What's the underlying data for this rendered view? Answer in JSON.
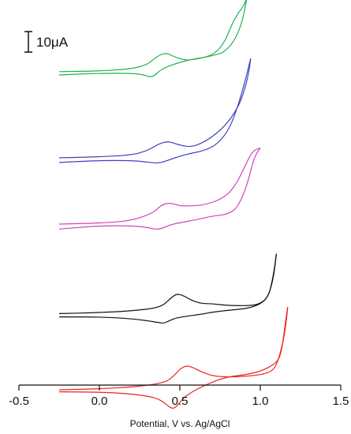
{
  "chart_data": {
    "type": "line",
    "title": "",
    "xlabel": "Potential, V vs. Ag/AgCl",
    "ylabel": "",
    "xlim": [
      -0.5,
      1.5
    ],
    "x_ticks": [
      -0.5,
      0.0,
      0.5,
      1.0,
      1.5
    ],
    "x_tick_labels": [
      "-0.5",
      "0.0",
      "0.5",
      "1.0",
      "1.5"
    ],
    "grid": false,
    "legend": "none",
    "scale_bar": {
      "label": "10μA",
      "value_uA": 10
    },
    "y_note": "current in μA; traces vertically offset, no y tick labels",
    "series": [
      {
        "color": "#22b24c",
        "offset_uA": 26,
        "forward": [
          [
            -0.25,
            0
          ],
          [
            0.0,
            0.2
          ],
          [
            0.2,
            0.8
          ],
          [
            0.3,
            2.2
          ],
          [
            0.33,
            3.5
          ],
          [
            0.38,
            5.2
          ],
          [
            0.42,
            5.6
          ],
          [
            0.46,
            4.6
          ],
          [
            0.52,
            3.6
          ],
          [
            0.56,
            3.5
          ],
          [
            0.65,
            4.2
          ],
          [
            0.72,
            5.5
          ],
          [
            0.78,
            9
          ],
          [
            0.82,
            14
          ],
          [
            0.86,
            17.5
          ],
          [
            0.9,
            20
          ],
          [
            0.92,
            23
          ],
          [
            0.94,
            30
          ]
        ],
        "reverse": [
          [
            0.94,
            30
          ],
          [
            0.9,
            17
          ],
          [
            0.85,
            10
          ],
          [
            0.78,
            6
          ],
          [
            0.72,
            5
          ],
          [
            0.65,
            4.3
          ],
          [
            0.56,
            3.6
          ],
          [
            0.48,
            2.5
          ],
          [
            0.42,
            1.5
          ],
          [
            0.38,
            0.5
          ],
          [
            0.34,
            -1.3
          ],
          [
            0.31,
            -1.6
          ],
          [
            0.28,
            -1
          ],
          [
            0.2,
            -0.5
          ],
          [
            0.0,
            -0.5
          ],
          [
            -0.25,
            -1
          ]
        ]
      },
      {
        "color": "#4040c0",
        "offset_uA": 0,
        "forward": [
          [
            -0.25,
            0
          ],
          [
            0.0,
            0.3
          ],
          [
            0.2,
            0.8
          ],
          [
            0.3,
            2.2
          ],
          [
            0.36,
            4
          ],
          [
            0.42,
            5
          ],
          [
            0.46,
            4.5
          ],
          [
            0.5,
            3.8
          ],
          [
            0.58,
            3.2
          ],
          [
            0.68,
            5.5
          ],
          [
            0.78,
            9.5
          ],
          [
            0.86,
            15
          ],
          [
            0.9,
            20
          ],
          [
            0.93,
            26
          ],
          [
            0.94,
            30
          ]
        ],
        "reverse": [
          [
            0.94,
            30
          ],
          [
            0.9,
            22
          ],
          [
            0.85,
            14
          ],
          [
            0.8,
            8
          ],
          [
            0.72,
            3.5
          ],
          [
            0.62,
            1.8
          ],
          [
            0.58,
            1.5
          ],
          [
            0.5,
            0.5
          ],
          [
            0.44,
            -0.5
          ],
          [
            0.4,
            -1.2
          ],
          [
            0.36,
            -1.6
          ],
          [
            0.32,
            -1.4
          ],
          [
            0.2,
            -0.8
          ],
          [
            0.0,
            -0.8
          ],
          [
            -0.25,
            -1.4
          ]
        ]
      },
      {
        "color": "#d040c0",
        "offset_uA": -20,
        "forward": [
          [
            -0.25,
            0
          ],
          [
            0.0,
            0.3
          ],
          [
            0.2,
            1
          ],
          [
            0.34,
            3.5
          ],
          [
            0.38,
            5.6
          ],
          [
            0.42,
            6.3
          ],
          [
            0.46,
            6.2
          ],
          [
            0.5,
            5.5
          ],
          [
            0.56,
            5.5
          ],
          [
            0.66,
            5.8
          ],
          [
            0.78,
            8
          ],
          [
            0.85,
            12
          ],
          [
            0.9,
            17
          ],
          [
            0.95,
            22
          ],
          [
            1.0,
            23
          ]
        ],
        "reverse": [
          [
            1.0,
            23
          ],
          [
            0.96,
            20
          ],
          [
            0.92,
            12
          ],
          [
            0.86,
            5
          ],
          [
            0.8,
            3
          ],
          [
            0.7,
            2.4
          ],
          [
            0.62,
            1.5
          ],
          [
            0.5,
            0.4
          ],
          [
            0.44,
            -0.2
          ],
          [
            0.38,
            -1.5
          ],
          [
            0.34,
            -1.5
          ],
          [
            0.3,
            -1
          ],
          [
            0.2,
            -0.5
          ],
          [
            0.0,
            -0.5
          ],
          [
            -0.25,
            -1.5
          ]
        ]
      },
      {
        "color": "#111111",
        "offset_uA": -47,
        "forward": [
          [
            -0.25,
            0
          ],
          [
            0.0,
            0.3
          ],
          [
            0.2,
            0.8
          ],
          [
            0.38,
            1.8
          ],
          [
            0.44,
            4.5
          ],
          [
            0.48,
            6
          ],
          [
            0.52,
            5.5
          ],
          [
            0.58,
            3.8
          ],
          [
            0.64,
            3
          ],
          [
            0.7,
            3
          ],
          [
            0.78,
            2.5
          ],
          [
            0.86,
            2.4
          ],
          [
            0.94,
            2.4
          ],
          [
            1.0,
            3
          ],
          [
            1.05,
            5
          ],
          [
            1.08,
            11
          ],
          [
            1.1,
            18
          ]
        ],
        "reverse": [
          [
            1.1,
            18
          ],
          [
            1.08,
            10
          ],
          [
            1.04,
            4
          ],
          [
            0.95,
            1.8
          ],
          [
            0.85,
            1.2
          ],
          [
            0.72,
            0.6
          ],
          [
            0.62,
            -0.3
          ],
          [
            0.54,
            -0.8
          ],
          [
            0.48,
            -1.3
          ],
          [
            0.44,
            -2
          ],
          [
            0.4,
            -3
          ],
          [
            0.36,
            -2.6
          ],
          [
            0.2,
            -1.5
          ],
          [
            0.0,
            -1
          ],
          [
            -0.25,
            -1
          ]
        ]
      },
      {
        "color": "#ee2020",
        "offset_uA": -70,
        "forward": [
          [
            -0.25,
            0
          ],
          [
            0.0,
            0.3
          ],
          [
            0.2,
            0.8
          ],
          [
            0.4,
            2
          ],
          [
            0.46,
            4
          ],
          [
            0.5,
            6.3
          ],
          [
            0.54,
            7.3
          ],
          [
            0.58,
            6.8
          ],
          [
            0.63,
            5.5
          ],
          [
            0.7,
            4.2
          ],
          [
            0.8,
            3.8
          ],
          [
            0.95,
            4.2
          ],
          [
            1.05,
            5
          ],
          [
            1.1,
            7
          ],
          [
            1.14,
            14
          ],
          [
            1.16,
            20
          ],
          [
            1.17,
            25
          ]
        ],
        "reverse": [
          [
            1.17,
            25
          ],
          [
            1.15,
            18
          ],
          [
            1.13,
            11
          ],
          [
            1.1,
            8
          ],
          [
            1.0,
            5.5
          ],
          [
            0.9,
            4.5
          ],
          [
            0.78,
            3.8
          ],
          [
            0.66,
            1.5
          ],
          [
            0.58,
            -0.5
          ],
          [
            0.52,
            -2.5
          ],
          [
            0.49,
            -4.5
          ],
          [
            0.46,
            -5.8
          ],
          [
            0.43,
            -5
          ],
          [
            0.38,
            -3
          ],
          [
            0.3,
            -1.8
          ],
          [
            0.1,
            -0.8
          ],
          [
            -0.25,
            -0.6
          ]
        ]
      }
    ]
  }
}
